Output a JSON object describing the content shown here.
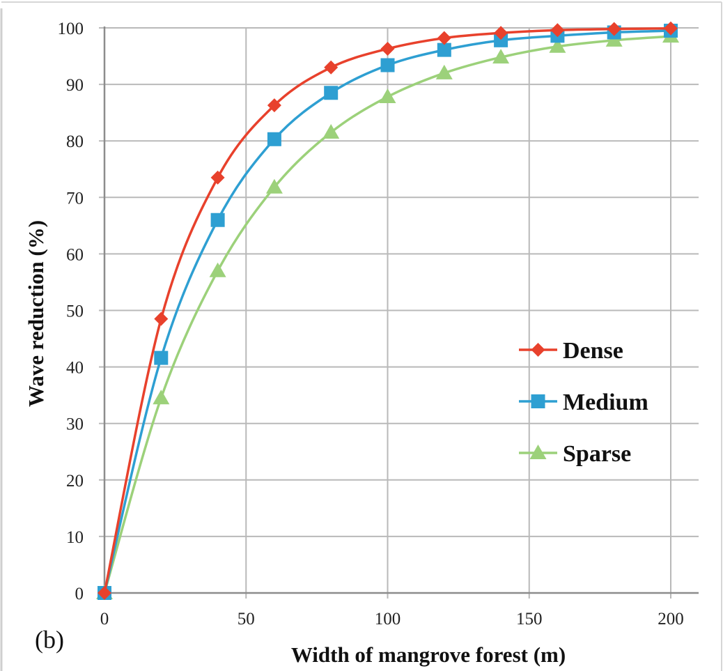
{
  "chart_data": {
    "type": "line",
    "panel_label": "(b)",
    "xlabel": "Width of mangrove forest (m)",
    "ylabel": "Wave reduction (%)",
    "xlim": [
      0,
      200
    ],
    "ylim": [
      0,
      100
    ],
    "x_ticks": [
      0,
      50,
      100,
      150,
      200
    ],
    "y_ticks": [
      0,
      10,
      20,
      30,
      40,
      50,
      60,
      70,
      80,
      90,
      100
    ],
    "grid": true,
    "legend_position": "right-middle",
    "x": [
      0,
      20,
      40,
      60,
      80,
      100,
      120,
      140,
      160,
      180,
      200
    ],
    "series": [
      {
        "name": "Dense",
        "color": "#e8412c",
        "marker": "diamond",
        "values": [
          0,
          48.5,
          73.5,
          86.3,
          93,
          96.3,
          98.2,
          99.1,
          99.6,
          99.8,
          99.9
        ]
      },
      {
        "name": "Medium",
        "color": "#2e9fd2",
        "marker": "square",
        "values": [
          0,
          41.6,
          66,
          80.3,
          88.5,
          93.4,
          96.1,
          97.8,
          98.6,
          99.2,
          99.5
        ]
      },
      {
        "name": "Sparse",
        "color": "#9cd17a",
        "marker": "triangle",
        "values": [
          0,
          34.5,
          57,
          71.8,
          81.5,
          87.8,
          92,
          94.8,
          96.7,
          97.8,
          98.5
        ]
      }
    ]
  }
}
